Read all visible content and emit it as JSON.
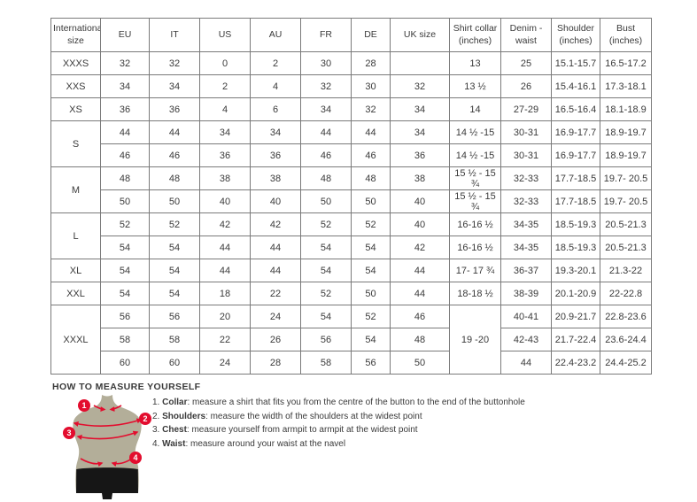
{
  "size_chart": {
    "columns": [
      "International size",
      "EU",
      "IT",
      "US",
      "AU",
      "FR",
      "DE",
      "UK size",
      "Shirt collar (inches)",
      "Denim - waist",
      "Shoulder (inches)",
      "Bust (inches)"
    ],
    "rows": [
      {
        "sub": false,
        "cells": [
          {
            "text": "XXXS"
          },
          {
            "text": "32"
          },
          {
            "text": "32"
          },
          {
            "text": "0"
          },
          {
            "text": "2"
          },
          {
            "text": "30"
          },
          {
            "text": "28"
          },
          {
            "text": ""
          },
          {
            "text": "13"
          },
          {
            "text": "25"
          },
          {
            "text": "15.1-15.7"
          },
          {
            "text": "16.5-17.2"
          }
        ]
      },
      {
        "sub": false,
        "cells": [
          {
            "text": "XXS"
          },
          {
            "text": "34"
          },
          {
            "text": "34"
          },
          {
            "text": "2"
          },
          {
            "text": "4"
          },
          {
            "text": "32"
          },
          {
            "text": "30"
          },
          {
            "text": "32"
          },
          {
            "text": "13 ½"
          },
          {
            "text": "26"
          },
          {
            "text": "15.4-16.1"
          },
          {
            "text": "17.3-18.1"
          }
        ]
      },
      {
        "sub": false,
        "cells": [
          {
            "text": "XS"
          },
          {
            "text": "36"
          },
          {
            "text": "36"
          },
          {
            "text": "4"
          },
          {
            "text": "6"
          },
          {
            "text": "34"
          },
          {
            "text": "32"
          },
          {
            "text": "34"
          },
          {
            "text": "14"
          },
          {
            "text": "27-29"
          },
          {
            "text": "16.5-16.4"
          },
          {
            "text": "18.1-18.9"
          }
        ]
      },
      {
        "sub": false,
        "cells": [
          {
            "text": "S",
            "rowspan": 2
          },
          {
            "text": "44"
          },
          {
            "text": "44"
          },
          {
            "text": "34"
          },
          {
            "text": "34"
          },
          {
            "text": "44"
          },
          {
            "text": "44"
          },
          {
            "text": "34"
          },
          {
            "text": "14 ½ -15"
          },
          {
            "text": "30-31"
          },
          {
            "text": "16.9-17.7"
          },
          {
            "text": "18.9-19.7"
          }
        ]
      },
      {
        "sub": true,
        "cells": [
          {
            "text": "46"
          },
          {
            "text": "46"
          },
          {
            "text": "36"
          },
          {
            "text": "36"
          },
          {
            "text": "46"
          },
          {
            "text": "46"
          },
          {
            "text": "36"
          },
          {
            "text": "14 ½ -15"
          },
          {
            "text": "30-31"
          },
          {
            "text": "16.9-17.7"
          },
          {
            "text": "18.9-19.7"
          }
        ]
      },
      {
        "sub": false,
        "cells": [
          {
            "text": "M",
            "rowspan": 2
          },
          {
            "text": "48"
          },
          {
            "text": "48"
          },
          {
            "text": "38"
          },
          {
            "text": "38"
          },
          {
            "text": "48"
          },
          {
            "text": "48"
          },
          {
            "text": "38"
          },
          {
            "text": "15 ½ - 15 ¾"
          },
          {
            "text": "32-33"
          },
          {
            "text": "17.7-18.5"
          },
          {
            "text": "19.7- 20.5"
          }
        ]
      },
      {
        "sub": true,
        "cells": [
          {
            "text": "50"
          },
          {
            "text": "50"
          },
          {
            "text": "40"
          },
          {
            "text": "40"
          },
          {
            "text": "50"
          },
          {
            "text": "50"
          },
          {
            "text": "40"
          },
          {
            "text": "15 ½ - 15 ¾"
          },
          {
            "text": "32-33"
          },
          {
            "text": "17.7-18.5"
          },
          {
            "text": "19.7- 20.5"
          }
        ]
      },
      {
        "sub": false,
        "cells": [
          {
            "text": "L",
            "rowspan": 2
          },
          {
            "text": "52"
          },
          {
            "text": "52"
          },
          {
            "text": "42"
          },
          {
            "text": "42"
          },
          {
            "text": "52"
          },
          {
            "text": "52"
          },
          {
            "text": "40"
          },
          {
            "text": "16-16 ½"
          },
          {
            "text": "34-35"
          },
          {
            "text": "18.5-19.3"
          },
          {
            "text": "20.5-21.3"
          }
        ]
      },
      {
        "sub": true,
        "cells": [
          {
            "text": "54"
          },
          {
            "text": "54"
          },
          {
            "text": "44"
          },
          {
            "text": "44"
          },
          {
            "text": "54"
          },
          {
            "text": "54"
          },
          {
            "text": "42"
          },
          {
            "text": "16-16 ½"
          },
          {
            "text": "34-35"
          },
          {
            "text": "18.5-19.3"
          },
          {
            "text": "20.5-21.3"
          }
        ]
      },
      {
        "sub": false,
        "cells": [
          {
            "text": "XL"
          },
          {
            "text": "54"
          },
          {
            "text": "54"
          },
          {
            "text": "44"
          },
          {
            "text": "44"
          },
          {
            "text": "54"
          },
          {
            "text": "54"
          },
          {
            "text": "44"
          },
          {
            "text": "17- 17 ¾"
          },
          {
            "text": "36-37"
          },
          {
            "text": "19.3-20.1"
          },
          {
            "text": "21.3-22"
          }
        ]
      },
      {
        "sub": false,
        "cells": [
          {
            "text": "XXL"
          },
          {
            "text": "54"
          },
          {
            "text": "54"
          },
          {
            "text": "18"
          },
          {
            "text": "22"
          },
          {
            "text": "52"
          },
          {
            "text": "50"
          },
          {
            "text": "44"
          },
          {
            "text": "18-18 ½"
          },
          {
            "text": "38-39"
          },
          {
            "text": "20.1-20.9"
          },
          {
            "text": "22-22.8"
          }
        ]
      },
      {
        "sub": false,
        "cells": [
          {
            "text": "XXXL",
            "rowspan": 3
          },
          {
            "text": "56"
          },
          {
            "text": "56"
          },
          {
            "text": "20"
          },
          {
            "text": "24"
          },
          {
            "text": "54"
          },
          {
            "text": "52"
          },
          {
            "text": "46"
          },
          {
            "text": "19 -20",
            "rowspan": 3
          },
          {
            "text": "40-41"
          },
          {
            "text": "20.9-21.7"
          },
          {
            "text": "22.8-23.6"
          }
        ]
      },
      {
        "sub": true,
        "cells": [
          {
            "text": "58"
          },
          {
            "text": "58"
          },
          {
            "text": "22"
          },
          {
            "text": "26"
          },
          {
            "text": "56"
          },
          {
            "text": "54"
          },
          {
            "text": "48"
          },
          {
            "text": "42-43"
          },
          {
            "text": "21.7-22.4"
          },
          {
            "text": "23.6-24.4"
          }
        ]
      },
      {
        "sub": true,
        "cells": [
          {
            "text": "60"
          },
          {
            "text": "60"
          },
          {
            "text": "24"
          },
          {
            "text": "28"
          },
          {
            "text": "58"
          },
          {
            "text": "56"
          },
          {
            "text": "50"
          },
          {
            "text": "44"
          },
          {
            "text": "22.4-23.2"
          },
          {
            "text": "24.4-25.2"
          }
        ]
      }
    ]
  },
  "measure_guide": {
    "title": "HOW TO MEASURE YOURSELF",
    "steps": [
      {
        "num": "1.",
        "label": "Collar",
        "text": ": measure a shirt that fits you from the centre of the button to the end of the buttonhole"
      },
      {
        "num": "2.",
        "label": "Shoulders",
        "text": ": measure the width of the shoulders at the widest point"
      },
      {
        "num": "3.",
        "label": "Chest",
        "text": ": measure yourself from armpit to armpit at the widest point"
      },
      {
        "num": "4.",
        "label": "Waist",
        "text": ": measure around your waist at the navel"
      }
    ],
    "markers": [
      "1",
      "2",
      "3",
      "4"
    ]
  },
  "colors": {
    "accent_red": "#e30d2e",
    "mannequin_body": "#b3ae99",
    "mannequin_shorts": "#161616",
    "table_border": "#7a7a7a",
    "table_border_light": "#c0c0c0",
    "text": "#3a3a3a"
  }
}
